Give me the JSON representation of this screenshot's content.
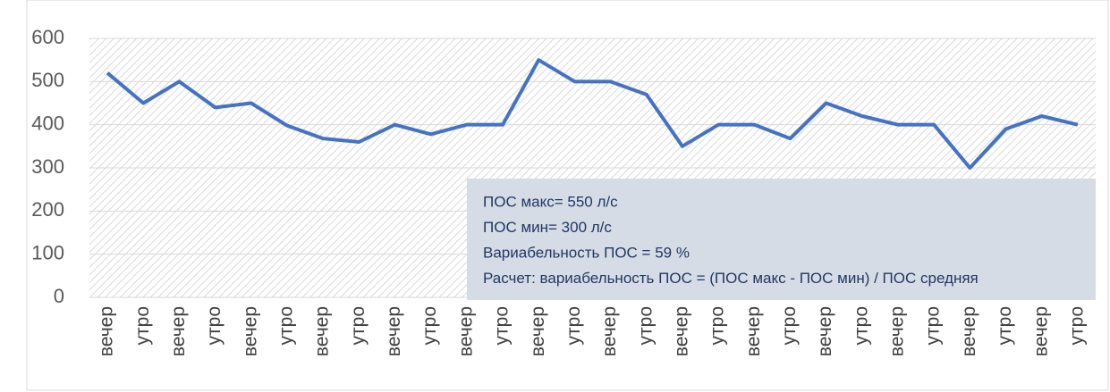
{
  "chart_data": {
    "type": "line",
    "categories": [
      "вечер",
      "утро",
      "вечер",
      "утро",
      "вечер",
      "утро",
      "вечер",
      "утро",
      "вечер",
      "утро",
      "вечер",
      "утро",
      "вечер",
      "утро",
      "вечер",
      "утро",
      "вечер",
      "утро",
      "вечер",
      "утро",
      "вечер",
      "утро",
      "вечер",
      "утро",
      "вечер",
      "утро",
      "вечер",
      "утро"
    ],
    "values": [
      520,
      450,
      500,
      440,
      450,
      398,
      368,
      360,
      400,
      378,
      400,
      400,
      550,
      500,
      500,
      470,
      350,
      400,
      400,
      368,
      450,
      420,
      400,
      400,
      300,
      390,
      420,
      400
    ],
    "color": "#4472c4",
    "ylim": [
      0,
      600
    ],
    "yticks": [
      0,
      100,
      200,
      300,
      400,
      500,
      600
    ],
    "grid": true,
    "annotations": [
      "ПОС макс= 550 л/с",
      "ПОС мин= 300 л/с",
      "Вариабельность ПОС = 59 %",
      "Расчет: вариабельность ПОС = (ПОС макс - ПОС мин) / ПОС средняя"
    ]
  }
}
